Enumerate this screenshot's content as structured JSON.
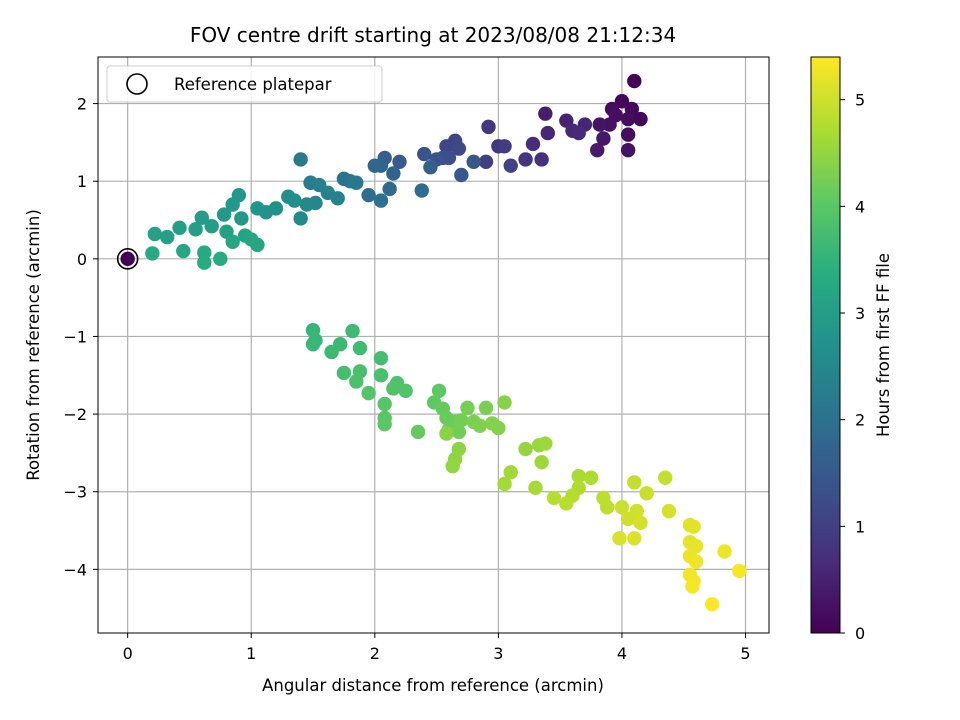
{
  "chart_data": {
    "type": "scatter",
    "title": "FOV centre drift starting at 2023/08/08 21:12:34",
    "xlabel": "Angular distance from reference (arcmin)",
    "ylabel": "Rotation from reference (arcmin)",
    "xlim": [
      -0.24,
      5.19
    ],
    "ylim": [
      -4.82,
      2.6
    ],
    "xticks": [
      0,
      1,
      2,
      3,
      4,
      5
    ],
    "yticks": [
      2,
      1,
      0,
      -1,
      -2,
      -3,
      -4
    ],
    "xtick_labels": [
      "0",
      "1",
      "2",
      "3",
      "4",
      "5"
    ],
    "ytick_labels": [
      "2",
      "1",
      "0",
      "−1",
      "−2",
      "−3",
      "−4"
    ],
    "grid": true,
    "colormap": "viridis",
    "colorbar": {
      "label": "Hours from first FF file",
      "range": [
        0,
        5.4
      ],
      "ticks": [
        0,
        1,
        2,
        3,
        4,
        5
      ],
      "tick_labels": [
        "0",
        "1",
        "2",
        "3",
        "4",
        "5"
      ]
    },
    "legend": {
      "placement": "top-left",
      "entries": [
        {
          "label": "Reference platepar",
          "marker": "open-circle"
        }
      ]
    },
    "reference_point": {
      "x": 0,
      "y": 0,
      "hours": 0
    },
    "points": [
      [
        4.1,
        2.29,
        0.05
      ],
      [
        4.0,
        2.03,
        0.1
      ],
      [
        3.92,
        1.93,
        0.15
      ],
      [
        4.08,
        1.93,
        0.12
      ],
      [
        3.95,
        1.85,
        0.2
      ],
      [
        4.05,
        1.8,
        0.18
      ],
      [
        4.15,
        1.8,
        0.13
      ],
      [
        3.9,
        1.73,
        0.25
      ],
      [
        3.82,
        1.73,
        0.3
      ],
      [
        4.05,
        1.6,
        0.22
      ],
      [
        3.85,
        1.55,
        0.35
      ],
      [
        3.8,
        1.4,
        0.4
      ],
      [
        4.05,
        1.4,
        0.28
      ],
      [
        3.38,
        1.87,
        0.45
      ],
      [
        3.55,
        1.78,
        0.5
      ],
      [
        3.7,
        1.73,
        0.55
      ],
      [
        3.6,
        1.65,
        0.6
      ],
      [
        3.4,
        1.62,
        0.58
      ],
      [
        3.65,
        1.62,
        0.65
      ],
      [
        3.28,
        1.48,
        0.7
      ],
      [
        3.35,
        1.28,
        0.75
      ],
      [
        3.22,
        1.28,
        0.8
      ],
      [
        2.92,
        1.7,
        0.85
      ],
      [
        3.0,
        1.45,
        0.9
      ],
      [
        3.05,
        1.45,
        0.95
      ],
      [
        2.9,
        1.25,
        1.0
      ],
      [
        3.1,
        1.2,
        1.05
      ],
      [
        2.65,
        1.52,
        1.1
      ],
      [
        2.58,
        1.45,
        1.15
      ],
      [
        2.68,
        1.42,
        1.2
      ],
      [
        2.55,
        1.3,
        1.25
      ],
      [
        2.6,
        1.3,
        1.3
      ],
      [
        2.4,
        1.35,
        1.35
      ],
      [
        2.5,
        1.28,
        1.4
      ],
      [
        2.8,
        1.25,
        1.45
      ],
      [
        2.7,
        1.08,
        1.5
      ],
      [
        2.2,
        1.25,
        1.55
      ],
      [
        2.08,
        1.3,
        1.6
      ],
      [
        2.45,
        1.18,
        1.65
      ],
      [
        2.15,
        1.1,
        1.7
      ],
      [
        2.05,
        1.2,
        1.75
      ],
      [
        2.0,
        1.2,
        1.8
      ],
      [
        2.12,
        0.9,
        1.85
      ],
      [
        2.38,
        0.88,
        1.9
      ],
      [
        1.95,
        0.82,
        1.95
      ],
      [
        2.05,
        0.75,
        2.0
      ],
      [
        1.75,
        1.03,
        2.05
      ],
      [
        1.8,
        1.0,
        2.1
      ],
      [
        1.85,
        0.98,
        2.15
      ],
      [
        1.4,
        1.28,
        2.2
      ],
      [
        1.48,
        0.98,
        2.25
      ],
      [
        1.55,
        0.95,
        2.3
      ],
      [
        1.62,
        0.85,
        2.35
      ],
      [
        1.7,
        0.78,
        2.4
      ],
      [
        1.52,
        0.72,
        2.45
      ],
      [
        1.45,
        0.7,
        2.5
      ],
      [
        1.4,
        0.52,
        2.55
      ],
      [
        1.3,
        0.8,
        2.6
      ],
      [
        1.35,
        0.75,
        2.65
      ],
      [
        1.2,
        0.65,
        2.7
      ],
      [
        1.12,
        0.6,
        2.75
      ],
      [
        1.05,
        0.65,
        2.8
      ],
      [
        0.9,
        0.82,
        2.85
      ],
      [
        0.85,
        0.7,
        2.88
      ],
      [
        0.78,
        0.57,
        2.9
      ],
      [
        0.92,
        0.52,
        2.92
      ],
      [
        0.6,
        0.53,
        2.95
      ],
      [
        0.68,
        0.42,
        2.97
      ],
      [
        0.55,
        0.38,
        3.0
      ],
      [
        0.42,
        0.4,
        3.02
      ],
      [
        0.32,
        0.28,
        3.05
      ],
      [
        0.22,
        0.32,
        3.08
      ],
      [
        0.8,
        0.35,
        3.1
      ],
      [
        0.95,
        0.3,
        3.12
      ],
      [
        0.85,
        0.22,
        3.15
      ],
      [
        1.0,
        0.25,
        3.17
      ],
      [
        1.05,
        0.18,
        3.2
      ],
      [
        0.45,
        0.1,
        3.22
      ],
      [
        0.2,
        0.07,
        3.25
      ],
      [
        0.62,
        0.08,
        3.27
      ],
      [
        0.62,
        -0.05,
        3.3
      ],
      [
        0.75,
        0.0,
        3.32
      ],
      [
        1.5,
        -0.92,
        3.55
      ],
      [
        1.52,
        -1.05,
        3.58
      ],
      [
        1.5,
        -1.1,
        3.6
      ],
      [
        1.72,
        -1.1,
        3.62
      ],
      [
        1.65,
        -1.2,
        3.65
      ],
      [
        1.82,
        -0.93,
        3.68
      ],
      [
        1.88,
        -1.15,
        3.7
      ],
      [
        2.05,
        -1.28,
        3.72
      ],
      [
        1.75,
        -1.47,
        3.75
      ],
      [
        1.88,
        -1.45,
        3.78
      ],
      [
        2.05,
        -1.5,
        3.8
      ],
      [
        1.85,
        -1.58,
        3.82
      ],
      [
        2.18,
        -1.6,
        3.85
      ],
      [
        2.15,
        -1.67,
        3.88
      ],
      [
        2.25,
        -1.7,
        3.9
      ],
      [
        1.95,
        -1.73,
        3.92
      ],
      [
        2.08,
        -1.87,
        3.95
      ],
      [
        2.08,
        -2.05,
        3.97
      ],
      [
        2.08,
        -2.13,
        4.0
      ],
      [
        2.52,
        -1.7,
        4.02
      ],
      [
        2.48,
        -1.85,
        4.05
      ],
      [
        2.55,
        -1.93,
        4.08
      ],
      [
        2.35,
        -2.23,
        4.1
      ],
      [
        2.58,
        -2.05,
        4.12
      ],
      [
        2.65,
        -2.1,
        4.15
      ],
      [
        2.6,
        -2.2,
        4.17
      ],
      [
        2.68,
        -2.23,
        4.2
      ],
      [
        2.7,
        -2.08,
        4.22
      ],
      [
        2.75,
        -1.92,
        4.25
      ],
      [
        2.9,
        -1.92,
        4.27
      ],
      [
        2.8,
        -2.1,
        4.3
      ],
      [
        2.85,
        -2.15,
        4.32
      ],
      [
        2.95,
        -2.12,
        4.35
      ],
      [
        3.0,
        -2.18,
        4.37
      ],
      [
        3.05,
        -1.85,
        4.4
      ],
      [
        2.58,
        -2.25,
        4.42
      ],
      [
        2.68,
        -2.45,
        4.45
      ],
      [
        2.65,
        -2.58,
        4.47
      ],
      [
        2.63,
        -2.67,
        4.5
      ],
      [
        3.22,
        -2.45,
        4.52
      ],
      [
        3.33,
        -2.4,
        4.55
      ],
      [
        3.38,
        -2.38,
        4.57
      ],
      [
        3.35,
        -2.62,
        4.6
      ],
      [
        3.1,
        -2.75,
        4.62
      ],
      [
        3.05,
        -2.9,
        4.65
      ],
      [
        3.3,
        -2.95,
        4.67
      ],
      [
        3.65,
        -2.8,
        4.7
      ],
      [
        3.75,
        -2.82,
        4.72
      ],
      [
        3.65,
        -2.95,
        4.75
      ],
      [
        3.6,
        -3.05,
        4.77
      ],
      [
        3.45,
        -3.08,
        4.8
      ],
      [
        3.55,
        -3.15,
        4.82
      ],
      [
        3.85,
        -3.08,
        4.85
      ],
      [
        3.88,
        -3.2,
        4.87
      ],
      [
        4.1,
        -2.88,
        4.9
      ],
      [
        4.35,
        -2.82,
        4.92
      ],
      [
        4.2,
        -3.02,
        4.95
      ],
      [
        4.0,
        -3.2,
        4.97
      ],
      [
        4.05,
        -3.35,
        5.0
      ],
      [
        4.12,
        -3.25,
        5.02
      ],
      [
        4.15,
        -3.4,
        5.05
      ],
      [
        4.38,
        -3.25,
        5.07
      ],
      [
        3.98,
        -3.6,
        5.1
      ],
      [
        4.1,
        -3.6,
        5.12
      ],
      [
        4.55,
        -3.43,
        5.15
      ],
      [
        4.58,
        -3.45,
        5.17
      ],
      [
        4.55,
        -3.65,
        5.2
      ],
      [
        4.6,
        -3.7,
        5.22
      ],
      [
        4.55,
        -3.83,
        5.25
      ],
      [
        4.6,
        -3.9,
        5.27
      ],
      [
        4.83,
        -3.77,
        5.28
      ],
      [
        4.55,
        -4.07,
        5.3
      ],
      [
        4.58,
        -4.15,
        5.32
      ],
      [
        4.57,
        -4.22,
        5.33
      ],
      [
        4.95,
        -4.02,
        5.35
      ],
      [
        4.73,
        -4.45,
        5.38
      ]
    ]
  }
}
